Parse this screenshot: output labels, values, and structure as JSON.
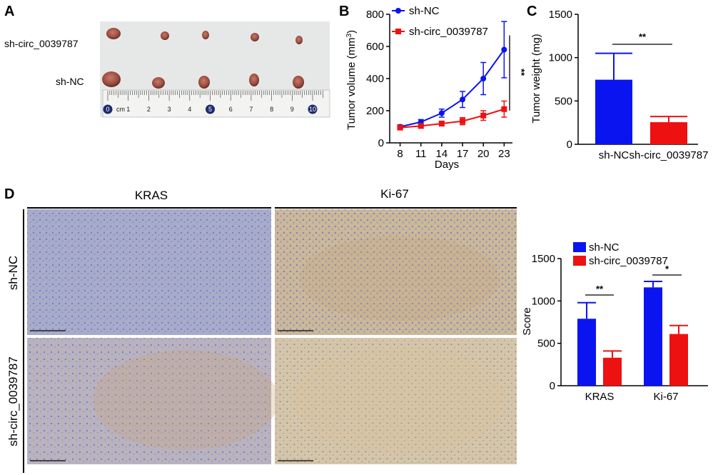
{
  "panels": {
    "A": {
      "label": "A",
      "row_labels": [
        "sh-circ_0039787",
        "sh-NC"
      ],
      "ruler_unit": "cm",
      "ruler_numbers": [
        "0",
        "1",
        "2",
        "3",
        "4",
        "5",
        "6",
        "7",
        "8",
        "9",
        "10"
      ]
    },
    "B": {
      "label": "B"
    },
    "C": {
      "label": "C"
    },
    "D": {
      "label": "D",
      "column_headers": [
        "KRAS",
        "Ki-67"
      ],
      "row_labels": [
        "sh-NC",
        "sh-circ_0039787"
      ]
    }
  },
  "colors": {
    "sh_NC": "#0a14f0",
    "sh_circ": "#ee1111",
    "photo_bg": "#e6e8e7",
    "ihc_blue": "#8f96c4",
    "ihc_brown": "#c9ac82"
  },
  "chart_data": [
    {
      "panel": "B",
      "type": "line",
      "xlabel": "Days",
      "ylabel": "Tumor volume (mm",
      "ylabel_sup": "3",
      "ylabel_close": ")",
      "x": [
        8,
        11,
        14,
        17,
        20,
        23
      ],
      "ylim": [
        0,
        800
      ],
      "yticks": [
        0,
        200,
        400,
        600,
        800
      ],
      "legend": "top-left",
      "significance": "**",
      "series": [
        {
          "name": "sh-NC",
          "marker": "circle",
          "values": [
            100,
            130,
            185,
            270,
            400,
            580
          ],
          "errors": [
            12,
            15,
            25,
            50,
            100,
            175
          ]
        },
        {
          "name": "sh-circ_0039787",
          "marker": "square",
          "values": [
            95,
            105,
            120,
            135,
            170,
            210
          ],
          "errors": [
            12,
            12,
            15,
            22,
            30,
            50
          ]
        }
      ]
    },
    {
      "panel": "C",
      "type": "bar",
      "categories": [
        "sh-NC",
        "sh-circ_0039787"
      ],
      "values": [
        745,
        255
      ],
      "errors": [
        305,
        65
      ],
      "ylabel": "Tumor weight (mg)",
      "ylim": [
        0,
        1500
      ],
      "yticks": [
        0,
        500,
        1000,
        1500
      ],
      "significance": "**"
    },
    {
      "panel": "D",
      "type": "bar",
      "categories": [
        "KRAS",
        "Ki-67"
      ],
      "ylabel": "Score",
      "ylim": [
        0,
        1500
      ],
      "yticks": [
        0,
        500,
        1000,
        1500
      ],
      "legend": "top-left",
      "series": [
        {
          "name": "sh-NC",
          "values": [
            790,
            1160
          ],
          "errors": [
            190,
            70
          ]
        },
        {
          "name": "sh-circ_0039787",
          "values": [
            330,
            610
          ],
          "errors": [
            80,
            100
          ]
        }
      ],
      "significance": [
        "**",
        "*"
      ]
    }
  ]
}
